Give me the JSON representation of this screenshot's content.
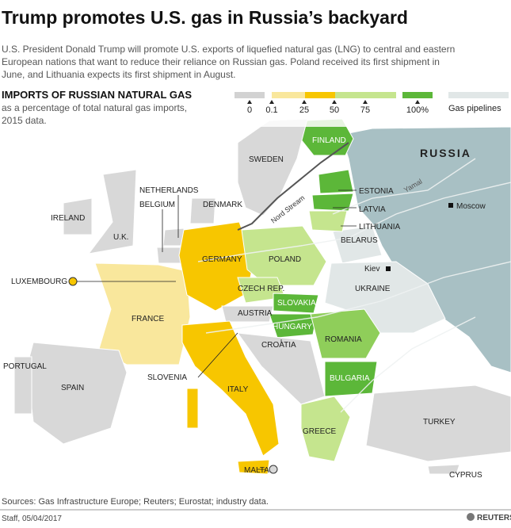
{
  "header": {
    "title": "Trump promotes U.S. gas in Russia’s backyard",
    "subtitle_lines": [
      "U.S. President Donald Trump will promote U.S. exports of liquefied natural gas (LNG) to central and eastern",
      "European nations that want to reduce their reliance on Russian gas. Poland received its first shipment in",
      "June, and Lithuania expects its first shipment in August."
    ]
  },
  "legend": {
    "title": "IMPORTS OF RUSSIAN NATURAL GAS",
    "subtitle_lines": [
      "as a percentage of total natural gas imports,",
      "2015 data."
    ],
    "ticks": [
      "0",
      "0.1",
      "25",
      "50",
      "75",
      "100%"
    ],
    "colors": [
      "#d2d2d2",
      "#f9e79c",
      "#f7c600",
      "#c5e58e",
      "#5cb739"
    ],
    "pipelines": "Gas pipelines"
  },
  "map": {
    "countries": [
      "FINLAND",
      "RUSSIA",
      "SWEDEN",
      "ESTONIA",
      "LATVIA",
      "LITHUANIA",
      "BELARUS",
      "NETHERLANDS",
      "BELGIUM",
      "DENMARK",
      "IRELAND",
      "U.K.",
      "GERMANY",
      "POLAND",
      "LUXEMBOURG",
      "CZECH REP.",
      "SLOVAKIA",
      "AUSTRIA",
      "HUNGARY",
      "UKRAINE",
      "FRANCE",
      "ROMANIA",
      "CROATIA",
      "PORTUGAL",
      "SLOVENIA",
      "BULGARIA",
      "SPAIN",
      "ITALY",
      "GREECE",
      "TURKEY",
      "MALTA",
      "CYPRUS"
    ],
    "cities": [
      "Moscow",
      "Kiev"
    ],
    "pipeline_names": [
      "Nord Stream",
      "Yamal"
    ]
  },
  "footer": {
    "sources": "Sources: Gas Infrastructure Europe; Reuters; Eurostat; industry data.",
    "credit": "Staff, 05/04/2017",
    "brand": "REUTERS"
  }
}
